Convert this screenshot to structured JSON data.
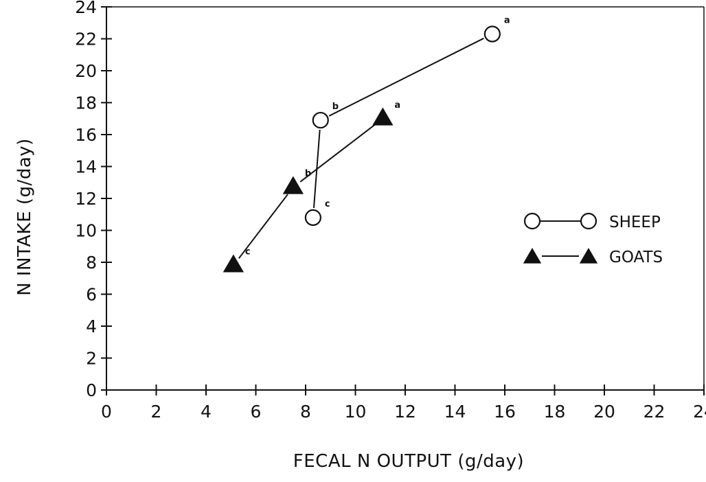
{
  "chart_data": {
    "type": "line",
    "xlabel": "FECAL N OUTPUT (g/day)",
    "ylabel": "N INTAKE (g/day)",
    "xlim": [
      0,
      24
    ],
    "ylim": [
      0,
      24
    ],
    "xticks": [
      "0",
      "2",
      "4",
      "6",
      "8",
      "10",
      "12",
      "14",
      "16",
      "18",
      "20",
      "22",
      "24"
    ],
    "yticks": [
      "0",
      "2",
      "4",
      "6",
      "8",
      "10",
      "12",
      "14",
      "16",
      "18",
      "20",
      "22",
      "24"
    ],
    "grid": false,
    "legend_placement": "right",
    "series": [
      {
        "name": "SHEEP",
        "marker": "circle-open",
        "points": [
          {
            "x": 8.3,
            "y": 10.8,
            "label": "c"
          },
          {
            "x": 8.6,
            "y": 16.9,
            "label": "b"
          },
          {
            "x": 15.5,
            "y": 22.3,
            "label": "a"
          }
        ]
      },
      {
        "name": "GOATS",
        "marker": "triangle-filled",
        "points": [
          {
            "x": 5.1,
            "y": 7.8,
            "label": "c"
          },
          {
            "x": 7.5,
            "y": 12.7,
            "label": "b"
          },
          {
            "x": 11.1,
            "y": 17.0,
            "label": "a"
          }
        ]
      }
    ]
  }
}
